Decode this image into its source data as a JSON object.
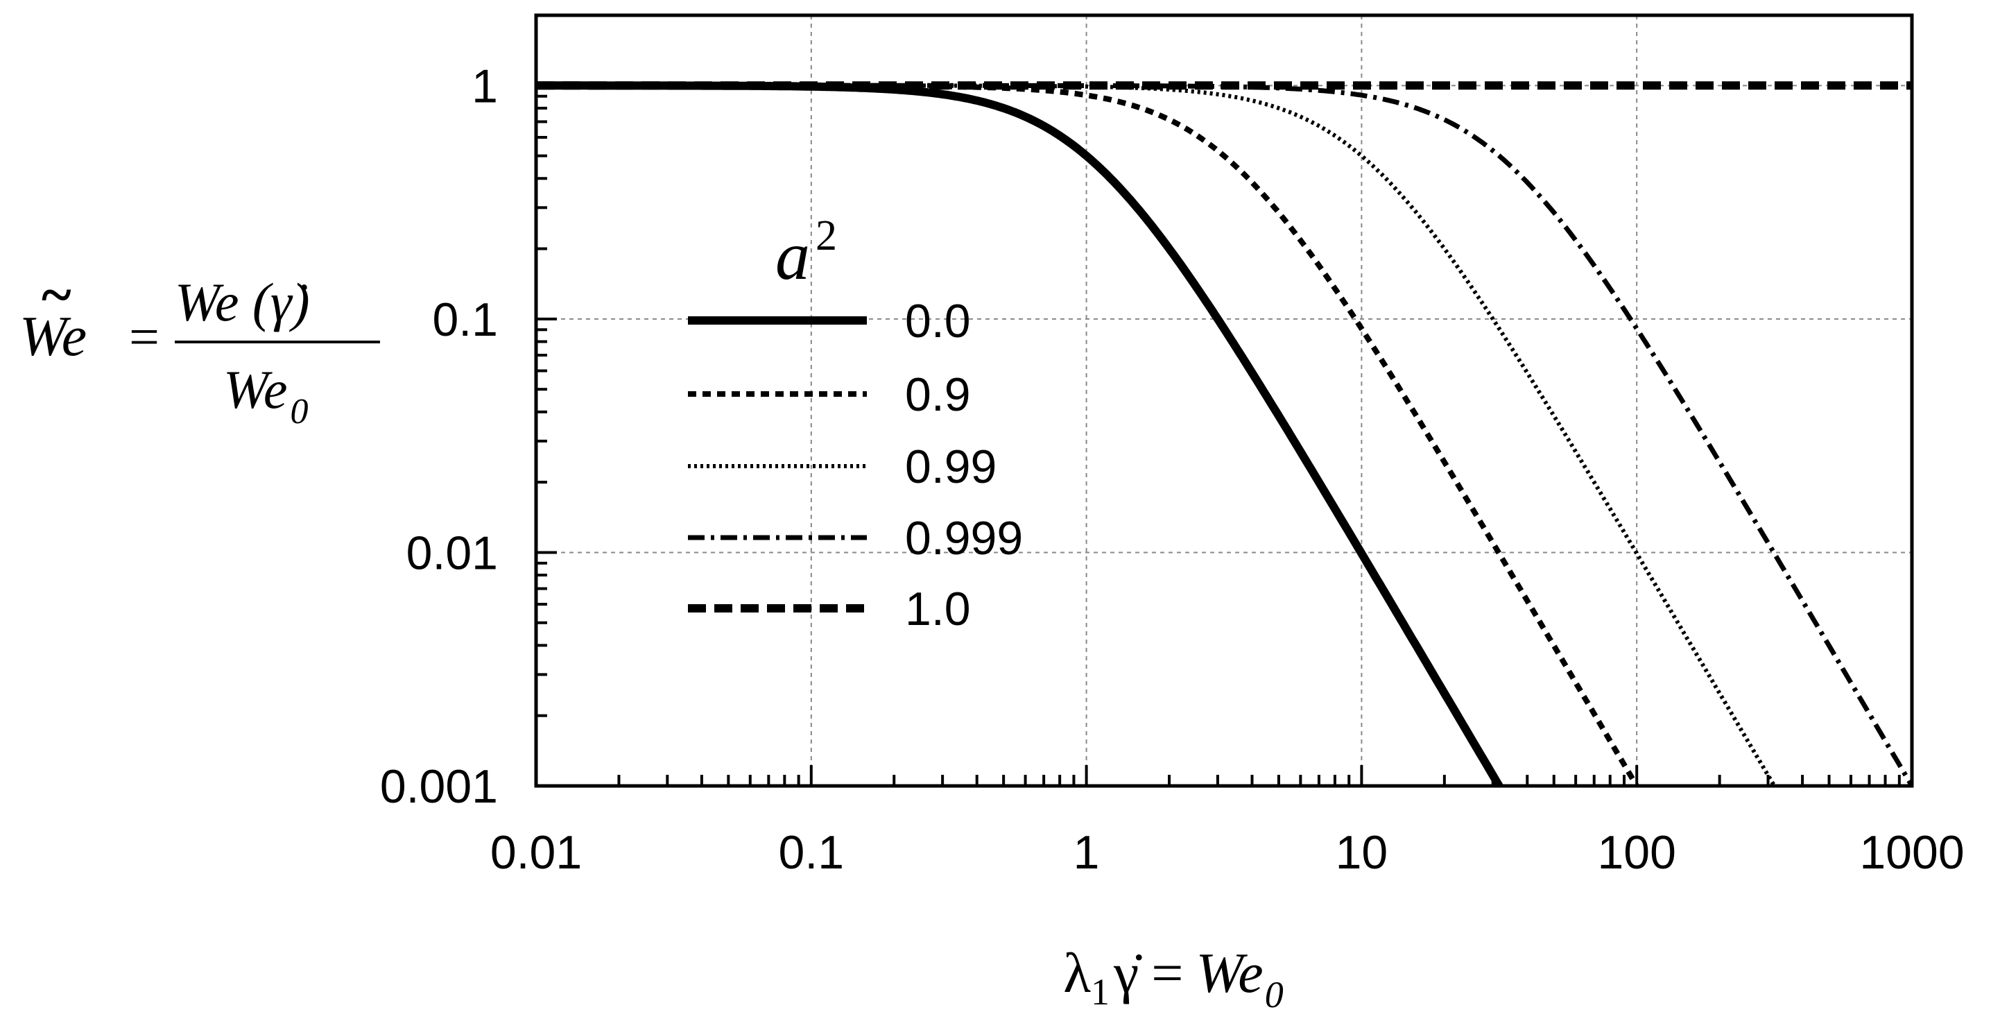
{
  "chart_data": {
    "type": "line",
    "x_scale": "log",
    "y_scale": "log",
    "xlim": [
      0.01,
      1000
    ],
    "ylim": [
      0.001,
      2
    ],
    "x_ticks": [
      0.01,
      0.1,
      1,
      10,
      100,
      1000
    ],
    "x_tick_labels": [
      "0.01",
      "0.1",
      "1",
      "10",
      "100",
      "1000"
    ],
    "y_ticks": [
      0.001,
      0.01,
      0.1,
      1
    ],
    "y_tick_labels": [
      "0.001",
      "0.01",
      "0.1",
      "1"
    ],
    "grid": true,
    "xlabel": {
      "lambda": "λ",
      "sub": "1",
      "gammadot": "γ̇",
      "equals": "=",
      "we": "We",
      "we_sub": "0"
    },
    "ylabel": {
      "tilde_we": "We",
      "tilde": "~",
      "equals": "=",
      "numerator": "We (γ̇)",
      "denominator": "We",
      "denominator_sub": "0"
    },
    "legend": {
      "title_base": "a",
      "title_sup": "2",
      "placement": "center-left inside plot"
    },
    "model": "We(γ̇)/We0 = 1 / (1 + (1 − a²)·(λ1γ̇)²)",
    "series": [
      {
        "name": "0.0",
        "a2": 0.0,
        "style": "solid"
      },
      {
        "name": "0.9",
        "a2": 0.9,
        "style": "dashed-short"
      },
      {
        "name": "0.99",
        "a2": 0.99,
        "style": "dotted"
      },
      {
        "name": "0.999",
        "a2": 0.999,
        "style": "dash-dot"
      },
      {
        "name": "1.0",
        "a2": 1.0,
        "style": "dashed-long"
      }
    ]
  }
}
